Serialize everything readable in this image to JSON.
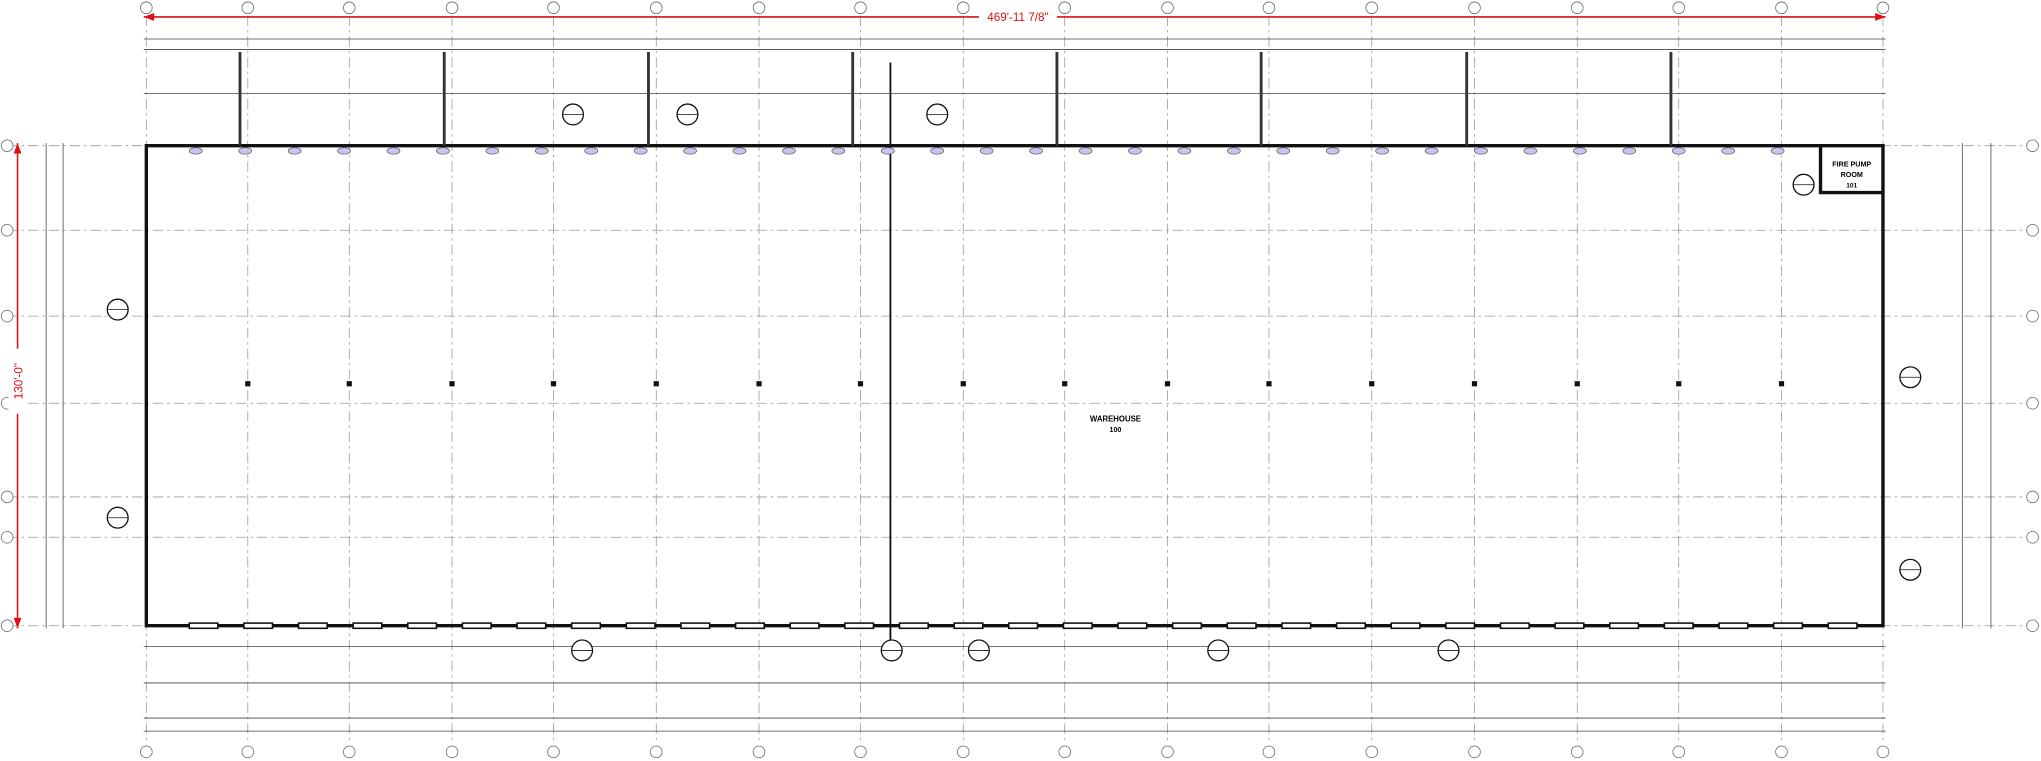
{
  "plan": {
    "overall_width": "469'-11 7/8\"",
    "overall_depth": "130'-0\"",
    "rooms": [
      {
        "name_lines": [
          "WAREHOUSE"
        ],
        "number": "100"
      },
      {
        "name_lines": [
          "FIRE PUMP",
          "ROOM"
        ],
        "number": "101"
      }
    ]
  }
}
